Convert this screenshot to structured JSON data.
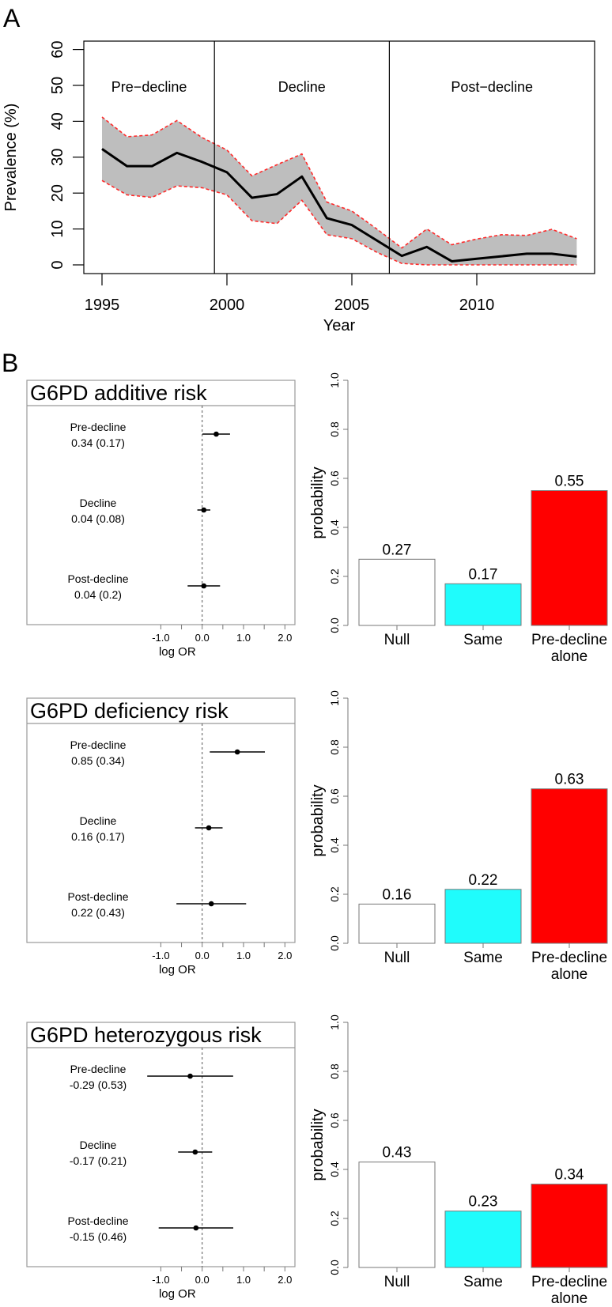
{
  "panel_labels": {
    "a": "A",
    "b": "B"
  },
  "colors": {
    "band": "#bebebe",
    "band_edge": "#ff2a2a",
    "same_bar": "#1ffcfc",
    "predecline_bar": "#ff0000",
    "null_bar": "#ffffff",
    "frame": "#999999"
  },
  "chart_data": [
    {
      "type": "line",
      "title": "",
      "xlabel": "Year",
      "ylabel": "Prevalence (%)",
      "xlim": [
        1995,
        2014
      ],
      "ylim": [
        0,
        60
      ],
      "xticks": [
        "1995",
        "2000",
        "2005",
        "2010"
      ],
      "yticks": [
        "0",
        "10",
        "20",
        "30",
        "40",
        "50",
        "60"
      ],
      "period_boundaries": [
        1999.5,
        2006.5
      ],
      "period_labels": [
        "Pre−decline",
        "Decline",
        "Post−decline"
      ],
      "x": [
        1995,
        1996,
        1997,
        1998,
        1999,
        2000,
        2001,
        2002,
        2003,
        2004,
        2005,
        2006,
        2007,
        2008,
        2009,
        2010,
        2011,
        2012,
        2013,
        2014
      ],
      "series": [
        {
          "name": "prevalence",
          "values": [
            32.3,
            27.5,
            27.5,
            31.2,
            28.7,
            25.8,
            18.7,
            19.7,
            24.6,
            13.0,
            11.1,
            6.8,
            2.5,
            5.0,
            1.0,
            1.7,
            2.4,
            3.1,
            3.1,
            2.3
          ]
        },
        {
          "name": "upper",
          "values": [
            41.2,
            35.7,
            36.2,
            40.2,
            35.5,
            32.0,
            24.8,
            27.9,
            30.9,
            17.5,
            15.0,
            10.0,
            4.7,
            10.0,
            5.6,
            7.2,
            8.4,
            8.2,
            9.9,
            7.3
          ]
        },
        {
          "name": "lower",
          "values": [
            23.5,
            19.5,
            18.8,
            22.0,
            21.5,
            19.5,
            12.3,
            11.5,
            18.0,
            8.4,
            7.3,
            3.5,
            0.4,
            0,
            0,
            0,
            0,
            0,
            0,
            0
          ]
        }
      ]
    },
    {
      "type": "scatter",
      "title": "G6PD additive risk",
      "xlabel": "log OR",
      "xlim": [
        -1,
        2
      ],
      "xticks": [
        "-1.0",
        "0.0",
        "1.0",
        "2.0"
      ],
      "rows": [
        {
          "label": "Pre-decline",
          "value_text": "0.34 (0.17)",
          "estimate": 0.34,
          "se": 0.17
        },
        {
          "label": "Decline",
          "value_text": "0.04 (0.08)",
          "estimate": 0.04,
          "se": 0.08
        },
        {
          "label": "Post-decline",
          "value_text": "0.04 (0.2)",
          "estimate": 0.04,
          "se": 0.2
        }
      ]
    },
    {
      "type": "bar",
      "ylabel": "probability",
      "ylim": [
        0,
        1
      ],
      "yticks": [
        "0.0",
        "0.2",
        "0.4",
        "0.6",
        "0.8",
        "1.0"
      ],
      "categories": [
        [
          "Null"
        ],
        [
          "Same"
        ],
        [
          "Pre-decline",
          "alone"
        ]
      ],
      "values": [
        0.27,
        0.17,
        0.55
      ],
      "value_labels": [
        "0.27",
        "0.17",
        "0.55"
      ]
    },
    {
      "type": "scatter",
      "title": "G6PD deficiency risk",
      "xlabel": "log OR",
      "xlim": [
        -1,
        2
      ],
      "xticks": [
        "-1.0",
        "0.0",
        "1.0",
        "2.0"
      ],
      "rows": [
        {
          "label": "Pre-decline",
          "value_text": "0.85 (0.34)",
          "estimate": 0.85,
          "se": 0.34
        },
        {
          "label": "Decline",
          "value_text": "0.16 (0.17)",
          "estimate": 0.16,
          "se": 0.17
        },
        {
          "label": "Post-decline",
          "value_text": "0.22 (0.43)",
          "estimate": 0.22,
          "se": 0.43
        }
      ]
    },
    {
      "type": "bar",
      "ylabel": "probability",
      "ylim": [
        0,
        1
      ],
      "yticks": [
        "0.0",
        "0.2",
        "0.4",
        "0.6",
        "0.8",
        "1.0"
      ],
      "categories": [
        [
          "Null"
        ],
        [
          "Same"
        ],
        [
          "Pre-decline",
          "alone"
        ]
      ],
      "values": [
        0.16,
        0.22,
        0.63
      ],
      "value_labels": [
        "0.16",
        "0.22",
        "0.63"
      ]
    },
    {
      "type": "scatter",
      "title": "G6PD heterozygous risk",
      "xlabel": "log OR",
      "xlim": [
        -1,
        2
      ],
      "xticks": [
        "-1.0",
        "0.0",
        "1.0",
        "2.0"
      ],
      "rows": [
        {
          "label": "Pre-decline",
          "value_text": "-0.29 (0.53)",
          "estimate": -0.29,
          "se": 0.53
        },
        {
          "label": "Decline",
          "value_text": "-0.17 (0.21)",
          "estimate": -0.17,
          "se": 0.21
        },
        {
          "label": "Post-decline",
          "value_text": "-0.15 (0.46)",
          "estimate": -0.15,
          "se": 0.46
        }
      ]
    },
    {
      "type": "bar",
      "ylabel": "probability",
      "ylim": [
        0,
        1
      ],
      "yticks": [
        "0.0",
        "0.2",
        "0.4",
        "0.6",
        "0.8",
        "1.0"
      ],
      "categories": [
        [
          "Null"
        ],
        [
          "Same"
        ],
        [
          "Pre-decline",
          "alone"
        ]
      ],
      "values": [
        0.43,
        0.23,
        0.34
      ],
      "value_labels": [
        "0.43",
        "0.23",
        "0.34"
      ]
    }
  ]
}
